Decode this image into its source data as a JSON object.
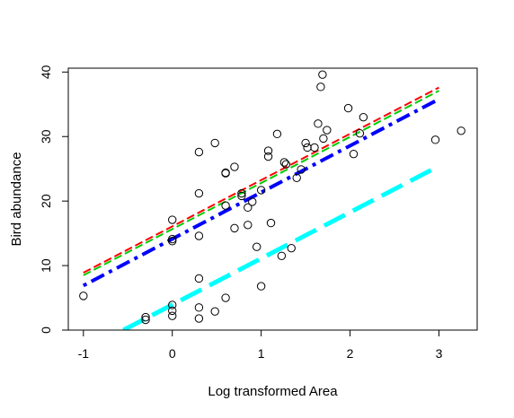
{
  "chart_data": {
    "type": "scatter",
    "title": "",
    "xlabel": "Log transformed Area",
    "ylabel": "Bird abundance",
    "xlim": [
      -1.17,
      3.43
    ],
    "ylim": [
      0,
      40.6
    ],
    "x_ticks": [
      -1,
      0,
      1,
      2,
      3
    ],
    "y_ticks": [
      0,
      10,
      20,
      30,
      40
    ],
    "grid": false,
    "points": [
      [
        -1.0,
        5.3
      ],
      [
        -0.3,
        2.0
      ],
      [
        -0.3,
        1.6
      ],
      [
        0.0,
        17.1
      ],
      [
        0.0,
        14.1
      ],
      [
        0.0,
        13.8
      ],
      [
        0.0,
        3.9
      ],
      [
        0.0,
        3.0
      ],
      [
        0.0,
        2.2
      ],
      [
        0.3,
        27.6
      ],
      [
        0.3,
        21.2
      ],
      [
        0.3,
        14.6
      ],
      [
        0.3,
        8.0
      ],
      [
        0.3,
        3.5
      ],
      [
        0.3,
        1.8
      ],
      [
        0.48,
        29.0
      ],
      [
        0.48,
        2.9
      ],
      [
        0.6,
        24.3
      ],
      [
        0.6,
        24.4
      ],
      [
        0.6,
        19.3
      ],
      [
        0.6,
        5.0
      ],
      [
        0.7,
        25.3
      ],
      [
        0.7,
        15.8
      ],
      [
        0.78,
        20.8
      ],
      [
        0.78,
        21.2
      ],
      [
        0.85,
        19.0
      ],
      [
        0.85,
        16.3
      ],
      [
        0.9,
        19.9
      ],
      [
        0.95,
        12.9
      ],
      [
        1.0,
        21.7
      ],
      [
        1.0,
        6.8
      ],
      [
        1.08,
        27.8
      ],
      [
        1.08,
        26.9
      ],
      [
        1.11,
        16.6
      ],
      [
        1.18,
        30.4
      ],
      [
        1.23,
        11.5
      ],
      [
        1.26,
        26.0
      ],
      [
        1.28,
        25.7
      ],
      [
        1.34,
        12.7
      ],
      [
        1.4,
        23.6
      ],
      [
        1.45,
        24.9
      ],
      [
        1.5,
        29.0
      ],
      [
        1.52,
        28.3
      ],
      [
        1.6,
        28.3
      ],
      [
        1.64,
        32.0
      ],
      [
        1.67,
        37.7
      ],
      [
        1.69,
        39.6
      ],
      [
        1.7,
        29.7
      ],
      [
        1.74,
        31.0
      ],
      [
        1.98,
        34.4
      ],
      [
        2.04,
        27.3
      ],
      [
        2.11,
        30.5
      ],
      [
        2.15,
        33.0
      ],
      [
        2.96,
        29.5
      ],
      [
        3.25,
        30.9
      ]
    ],
    "series": [
      {
        "x": [
          -1,
          3
        ],
        "y": [
          8.9,
          37.6
        ],
        "color": "#ff0000",
        "style": "dashed"
      },
      {
        "x": [
          -1,
          3
        ],
        "y": [
          8.5,
          37.1
        ],
        "color": "#00cd00",
        "style": "dashed"
      },
      {
        "x": [
          -1,
          3
        ],
        "y": [
          6.9,
          35.8
        ],
        "color": "#0000ff",
        "style": "dotdash"
      },
      {
        "x": [
          -0.55,
          2.94
        ],
        "y": [
          0,
          25.0
        ],
        "color": "#00ffff",
        "style": "longdash"
      }
    ]
  }
}
